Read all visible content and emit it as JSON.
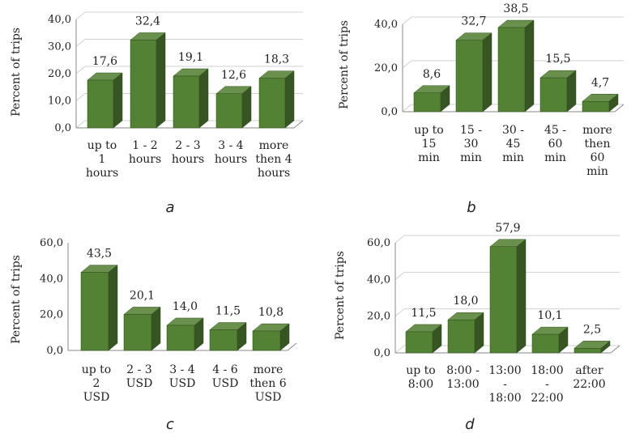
{
  "chart_data": [
    {
      "type": "bar",
      "panel_label": "a",
      "ylabel": "Percent of trips",
      "ylim": [
        0,
        40
      ],
      "yticks": [
        "0,0",
        "10,0",
        "20,0",
        "30,0",
        "40,0"
      ],
      "categories": [
        [
          "up to",
          "1",
          "hours"
        ],
        [
          "1 - 2",
          "hours"
        ],
        [
          "2 - 3",
          "hours"
        ],
        [
          "3 - 4",
          "hours"
        ],
        [
          "more",
          "then 4",
          "hours"
        ]
      ],
      "values": [
        17.6,
        32.4,
        19.1,
        12.6,
        18.3
      ],
      "labels": [
        "17,6",
        "32,4",
        "19,1",
        "12,6",
        "18,3"
      ],
      "grid": true,
      "color": "#548235"
    },
    {
      "type": "bar",
      "panel_label": "b",
      "ylabel": "Percent of trips",
      "ylim": [
        0,
        40
      ],
      "yticks": [
        "0,0",
        "20,0",
        "40,0"
      ],
      "categories": [
        [
          "up to",
          "15",
          "min"
        ],
        [
          "15 -",
          "30",
          "min"
        ],
        [
          "30 -",
          "45",
          "min"
        ],
        [
          "45 -",
          "60",
          "min"
        ],
        [
          "more",
          "then",
          "60",
          "min"
        ]
      ],
      "values": [
        8.6,
        32.7,
        38.5,
        15.5,
        4.7
      ],
      "labels": [
        "8,6",
        "32,7",
        "38,5",
        "15,5",
        "4,7"
      ],
      "grid": true,
      "color": "#548235"
    },
    {
      "type": "bar",
      "panel_label": "c",
      "ylabel": "Percent of trips",
      "ylim": [
        0,
        60
      ],
      "yticks": [
        "0,0",
        "20,0",
        "40,0",
        "60,0"
      ],
      "categories": [
        [
          "up to",
          "2",
          "USD"
        ],
        [
          "2 - 3",
          "USD"
        ],
        [
          "3 - 4",
          "USD"
        ],
        [
          "4 - 6",
          "USD"
        ],
        [
          "more",
          "then 6",
          "USD"
        ]
      ],
      "values": [
        43.5,
        20.1,
        14.0,
        11.5,
        10.8
      ],
      "labels": [
        "43,5",
        "20,1",
        "14,0",
        "11,5",
        "10,8"
      ],
      "grid": false,
      "color": "#548235"
    },
    {
      "type": "bar",
      "panel_label": "d",
      "ylabel": "Percent of trips",
      "ylim": [
        0,
        60
      ],
      "yticks": [
        "0,0",
        "20,0",
        "40,0",
        "60,0"
      ],
      "categories": [
        [
          "up to",
          "8:00"
        ],
        [
          "8:00 -",
          "13:00"
        ],
        [
          "13:00",
          "-",
          "18:00"
        ],
        [
          "18:00",
          "-",
          "22:00"
        ],
        [
          "after",
          "22:00"
        ]
      ],
      "values": [
        11.5,
        18.0,
        57.9,
        10.1,
        2.5
      ],
      "labels": [
        "11,5",
        "18,0",
        "57,9",
        "10,1",
        "2,5"
      ],
      "grid": true,
      "color": "#548235"
    }
  ]
}
